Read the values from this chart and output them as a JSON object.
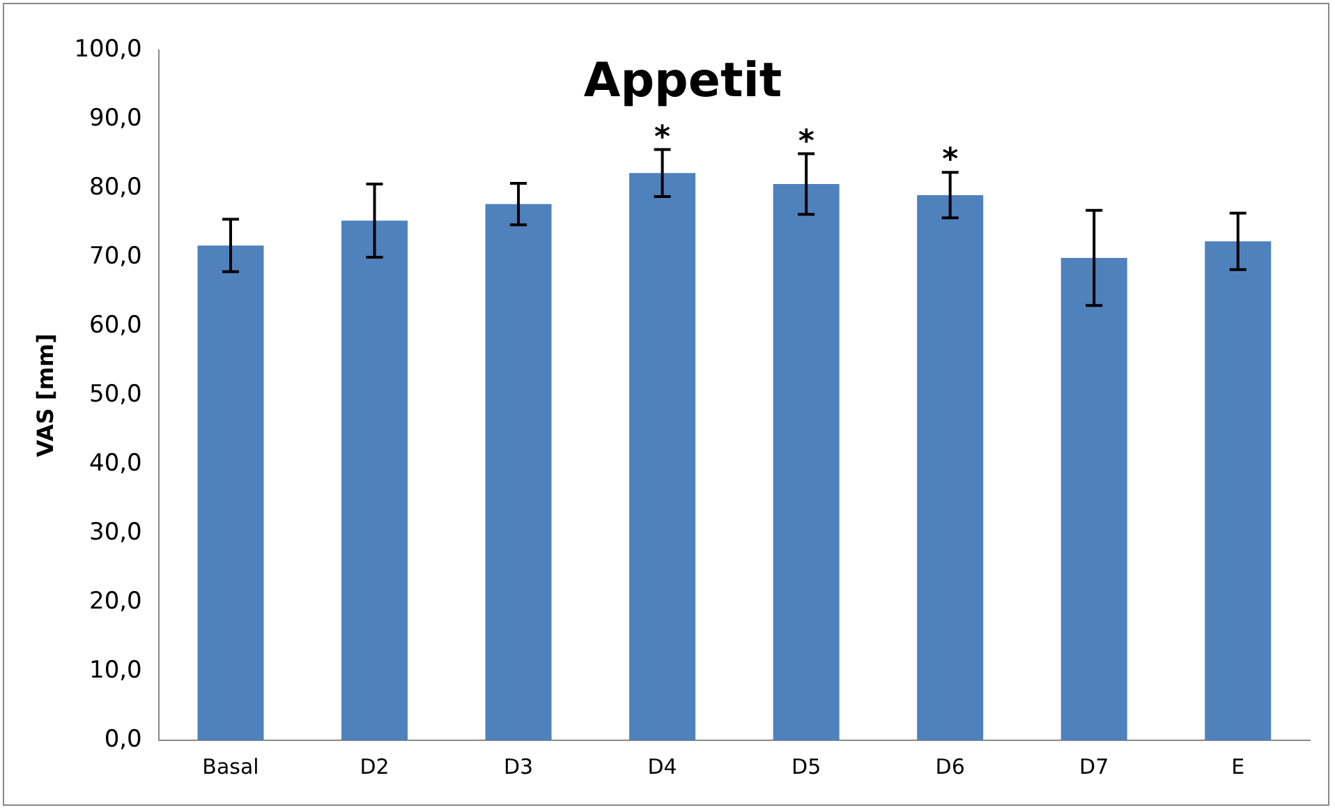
{
  "chart_data": {
    "type": "bar",
    "title": "Appetit",
    "ylabel": "VAS [mm]",
    "categories": [
      "Basal",
      "D2",
      "D3",
      "D4",
      "D5",
      "D6",
      "D7",
      "E"
    ],
    "values": [
      71.7,
      75.3,
      77.7,
      82.2,
      80.6,
      79.0,
      69.9,
      72.3
    ],
    "errors": [
      3.8,
      5.3,
      3.0,
      3.4,
      4.4,
      3.3,
      6.9,
      4.1
    ],
    "color": "#4f81bd",
    "ylim": [
      0,
      100
    ],
    "yticks": [
      {
        "value": 0,
        "label": "0,0"
      },
      {
        "value": 10,
        "label": "10,0"
      },
      {
        "value": 20,
        "label": "20,0"
      },
      {
        "value": 30,
        "label": "30,0"
      },
      {
        "value": 40,
        "label": "40,0"
      },
      {
        "value": 50,
        "label": "50,0"
      },
      {
        "value": 60,
        "label": "60,0"
      },
      {
        "value": 70,
        "label": "70,0"
      },
      {
        "value": 80,
        "label": "80,0"
      },
      {
        "value": 90,
        "label": "90,0"
      },
      {
        "value": 100,
        "label": "100,0"
      }
    ],
    "annotations": [
      {
        "text": "*",
        "x": "D4",
        "y": 82.2
      },
      {
        "text": "*",
        "x": "D5",
        "y": 80.6
      },
      {
        "text": "*",
        "x": "D6",
        "y": 79.0
      }
    ],
    "grid": false,
    "legend": false
  }
}
